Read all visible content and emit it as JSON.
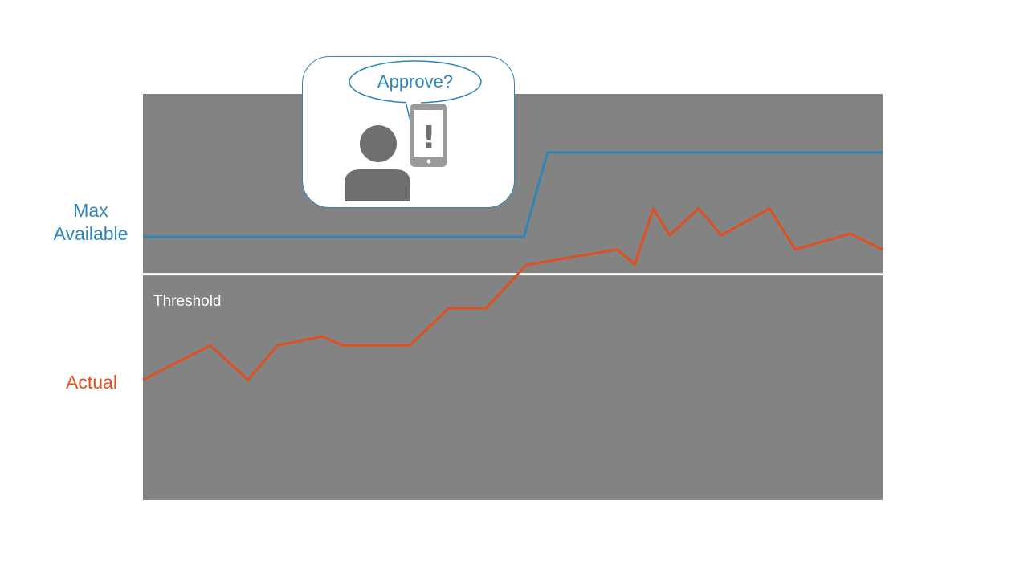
{
  "colors": {
    "plot_background": "#838383",
    "max_available": "#2e86b8",
    "actual": "#df4f1f",
    "threshold": "#ffffff",
    "icon": "#6f6f6f",
    "phone": "#9a9a9a"
  },
  "labels": {
    "max_available": "Max\nAvailable",
    "actual": "Actual",
    "threshold": "Threshold"
  },
  "callout": {
    "speech_text": "Approve?",
    "icons": [
      "person-icon",
      "phone-alert-icon"
    ],
    "phone_symbol": "!"
  },
  "chart_data": {
    "type": "line",
    "title": "",
    "xlabel": "",
    "ylabel": "",
    "xlim": [
      0,
      100
    ],
    "ylim": [
      0,
      100
    ],
    "grid": false,
    "threshold": {
      "label": "Threshold",
      "y": 55.6
    },
    "series": [
      {
        "name": "Max Available",
        "x": [
          0,
          51.5,
          54.7,
          100
        ],
        "y": [
          64.8,
          64.8,
          85.6,
          85.6
        ]
      },
      {
        "name": "Actual",
        "x": [
          0,
          9.1,
          14.2,
          18.2,
          24.3,
          27.0,
          36.1,
          41.3,
          46.4,
          51.8,
          64.1,
          66.5,
          69.0,
          71.2,
          75.1,
          78.2,
          84.7,
          88.2,
          95.6,
          100
        ],
        "y": [
          29.6,
          38.1,
          29.6,
          38.1,
          40.3,
          38.1,
          38.1,
          47.2,
          47.2,
          57.9,
          61.7,
          58.0,
          71.8,
          65.2,
          71.8,
          65.2,
          71.8,
          61.7,
          65.6,
          61.7
        ]
      }
    ]
  }
}
